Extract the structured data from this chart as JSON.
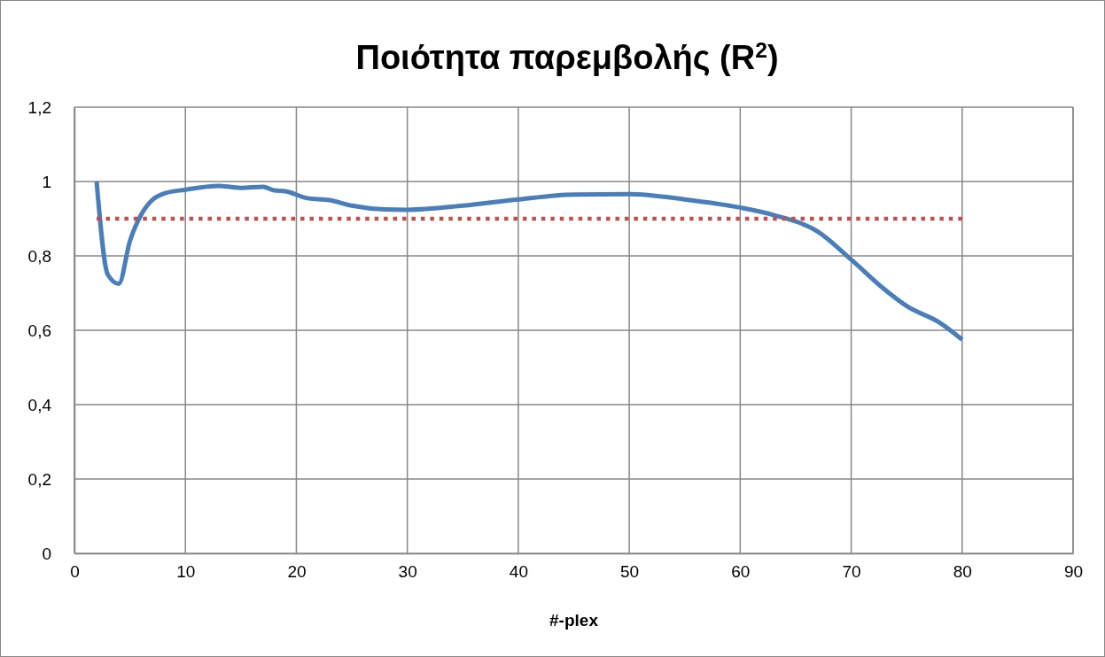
{
  "chart_data": {
    "type": "line",
    "title": "Ποιότητα παρεμβολής (R$^{2}$)",
    "xlabel": "#-plex",
    "xlim": [
      0,
      90
    ],
    "xticks": [
      0,
      10,
      20,
      30,
      40,
      50,
      60,
      70,
      80,
      90
    ],
    "ylim": [
      0,
      1.2
    ],
    "yticks": [
      0,
      {
        "value": 0.2,
        "label": "0,2"
      },
      {
        "value": 0.4,
        "label": "0,4"
      },
      {
        "value": 0.6,
        "label": "0,6"
      },
      {
        "value": 0.8,
        "label": "0,8"
      },
      1,
      {
        "value": 1.2,
        "label": "1,2"
      }
    ],
    "grid": true,
    "series": [
      {
        "color": "#4a7ebb",
        "line_style": "solid",
        "x": [
          2,
          3,
          4,
          5,
          6,
          7,
          8,
          10,
          13,
          15,
          17,
          18,
          19,
          21,
          23,
          25,
          28,
          30,
          35,
          40,
          45,
          50,
          55,
          60,
          63,
          67,
          70,
          73,
          75,
          78,
          80
        ],
        "values": [
          1.0,
          0.75,
          0.725,
          0.84,
          0.91,
          0.95,
          0.967,
          0.978,
          0.988,
          0.983,
          0.986,
          0.976,
          0.974,
          0.955,
          0.95,
          0.935,
          0.925,
          0.924,
          0.935,
          0.952,
          0.965,
          0.966,
          0.952,
          0.93,
          0.91,
          0.865,
          0.79,
          0.71,
          0.665,
          0.62,
          0.575
        ]
      },
      {
        "color": "#c0504d",
        "line_style": "dotted",
        "x": [
          2,
          80
        ],
        "values": [
          0.9,
          0.9
        ]
      }
    ]
  }
}
